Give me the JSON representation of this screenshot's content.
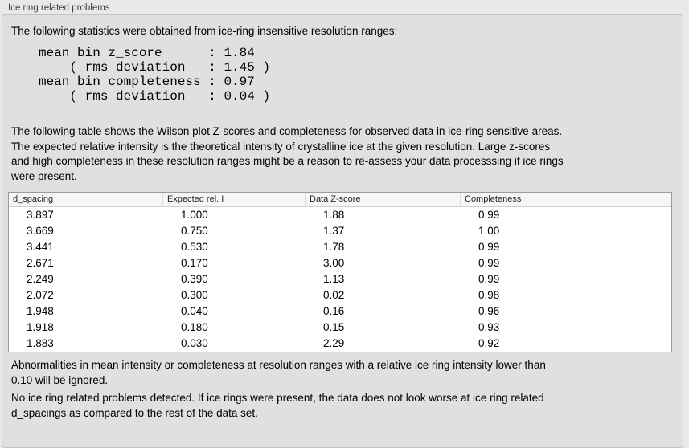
{
  "panel": {
    "title": "Ice ring related problems"
  },
  "intro": {
    "text": "The following statistics were obtained from ice-ring insensitive resolution ranges:",
    "stats_block": "mean bin z_score      : 1.84\n    ( rms deviation   : 1.45 )\nmean bin completeness : 0.97\n    ( rms deviation   : 0.04 )"
  },
  "description": "The following table shows the Wilson plot Z-scores and completeness for observed data in ice-ring sensitive areas.\nThe expected relative intensity is the theoretical intensity of crystalline ice at the given resolution. Large z-scores\nand high completeness in these resolution ranges might be a reason to re-assess your data processsing if ice rings\nwere present.",
  "table": {
    "columns": [
      "d_spacing",
      "Expected rel. I",
      "Data Z-score",
      "Completeness"
    ],
    "rows": [
      [
        "3.897",
        "1.000",
        "1.88",
        "0.99"
      ],
      [
        "3.669",
        "0.750",
        "1.37",
        "1.00"
      ],
      [
        "3.441",
        "0.530",
        "1.78",
        "0.99"
      ],
      [
        "2.671",
        "0.170",
        "3.00",
        "0.99"
      ],
      [
        "2.249",
        "0.390",
        "1.13",
        "0.99"
      ],
      [
        "2.072",
        "0.300",
        "0.02",
        "0.98"
      ],
      [
        "1.948",
        "0.040",
        "0.16",
        "0.96"
      ],
      [
        "1.918",
        "0.180",
        "0.15",
        "0.93"
      ],
      [
        "1.883",
        "0.030",
        "2.29",
        "0.92"
      ]
    ]
  },
  "footnotes": {
    "ignore_note": "Abnormalities in mean intensity or completeness at resolution ranges with a relative ice ring intensity lower than\n0.10 will be ignored.",
    "conclusion": "No ice ring related problems detected. If ice rings were present, the data does not look worse at ice ring related\nd_spacings as compared to the rest of the data set."
  }
}
